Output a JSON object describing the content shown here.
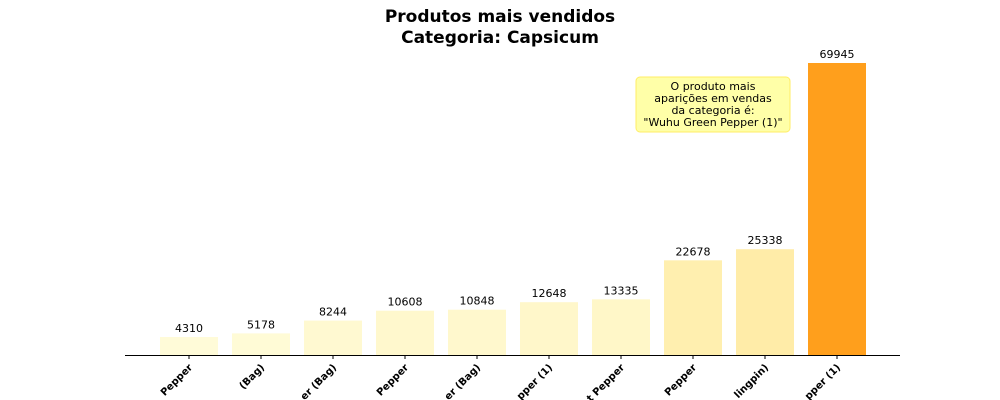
{
  "chart_data": {
    "type": "bar",
    "title": [
      "Produtos mais vendidos",
      "Categoria: Capsicum"
    ],
    "categories": [
      "Pepper",
      "(Bag)",
      "er (Bag)",
      "Pepper",
      "er (Bag)",
      "pper (1)",
      "t Pepper",
      "Pepper",
      "lingpin)",
      "pper (1)"
    ],
    "values": [
      4310,
      5178,
      8244,
      10608,
      10848,
      12648,
      13335,
      22678,
      25338,
      69945
    ],
    "colors": [
      "#fffbd8",
      "#fffbd6",
      "#fff9d1",
      "#fff8cd",
      "#fff8cd",
      "#fff7ca",
      "#fff7c8",
      "#ffefaf",
      "#ffeca8",
      "#ff9f1c"
    ],
    "ylim": [
      0,
      70000
    ],
    "grid": false,
    "annotation": {
      "lines": [
        "O produto mais",
        "aparições em vendas",
        "da categoria é:",
        "\"Wuhu Green Pepper (1)\""
      ]
    }
  }
}
